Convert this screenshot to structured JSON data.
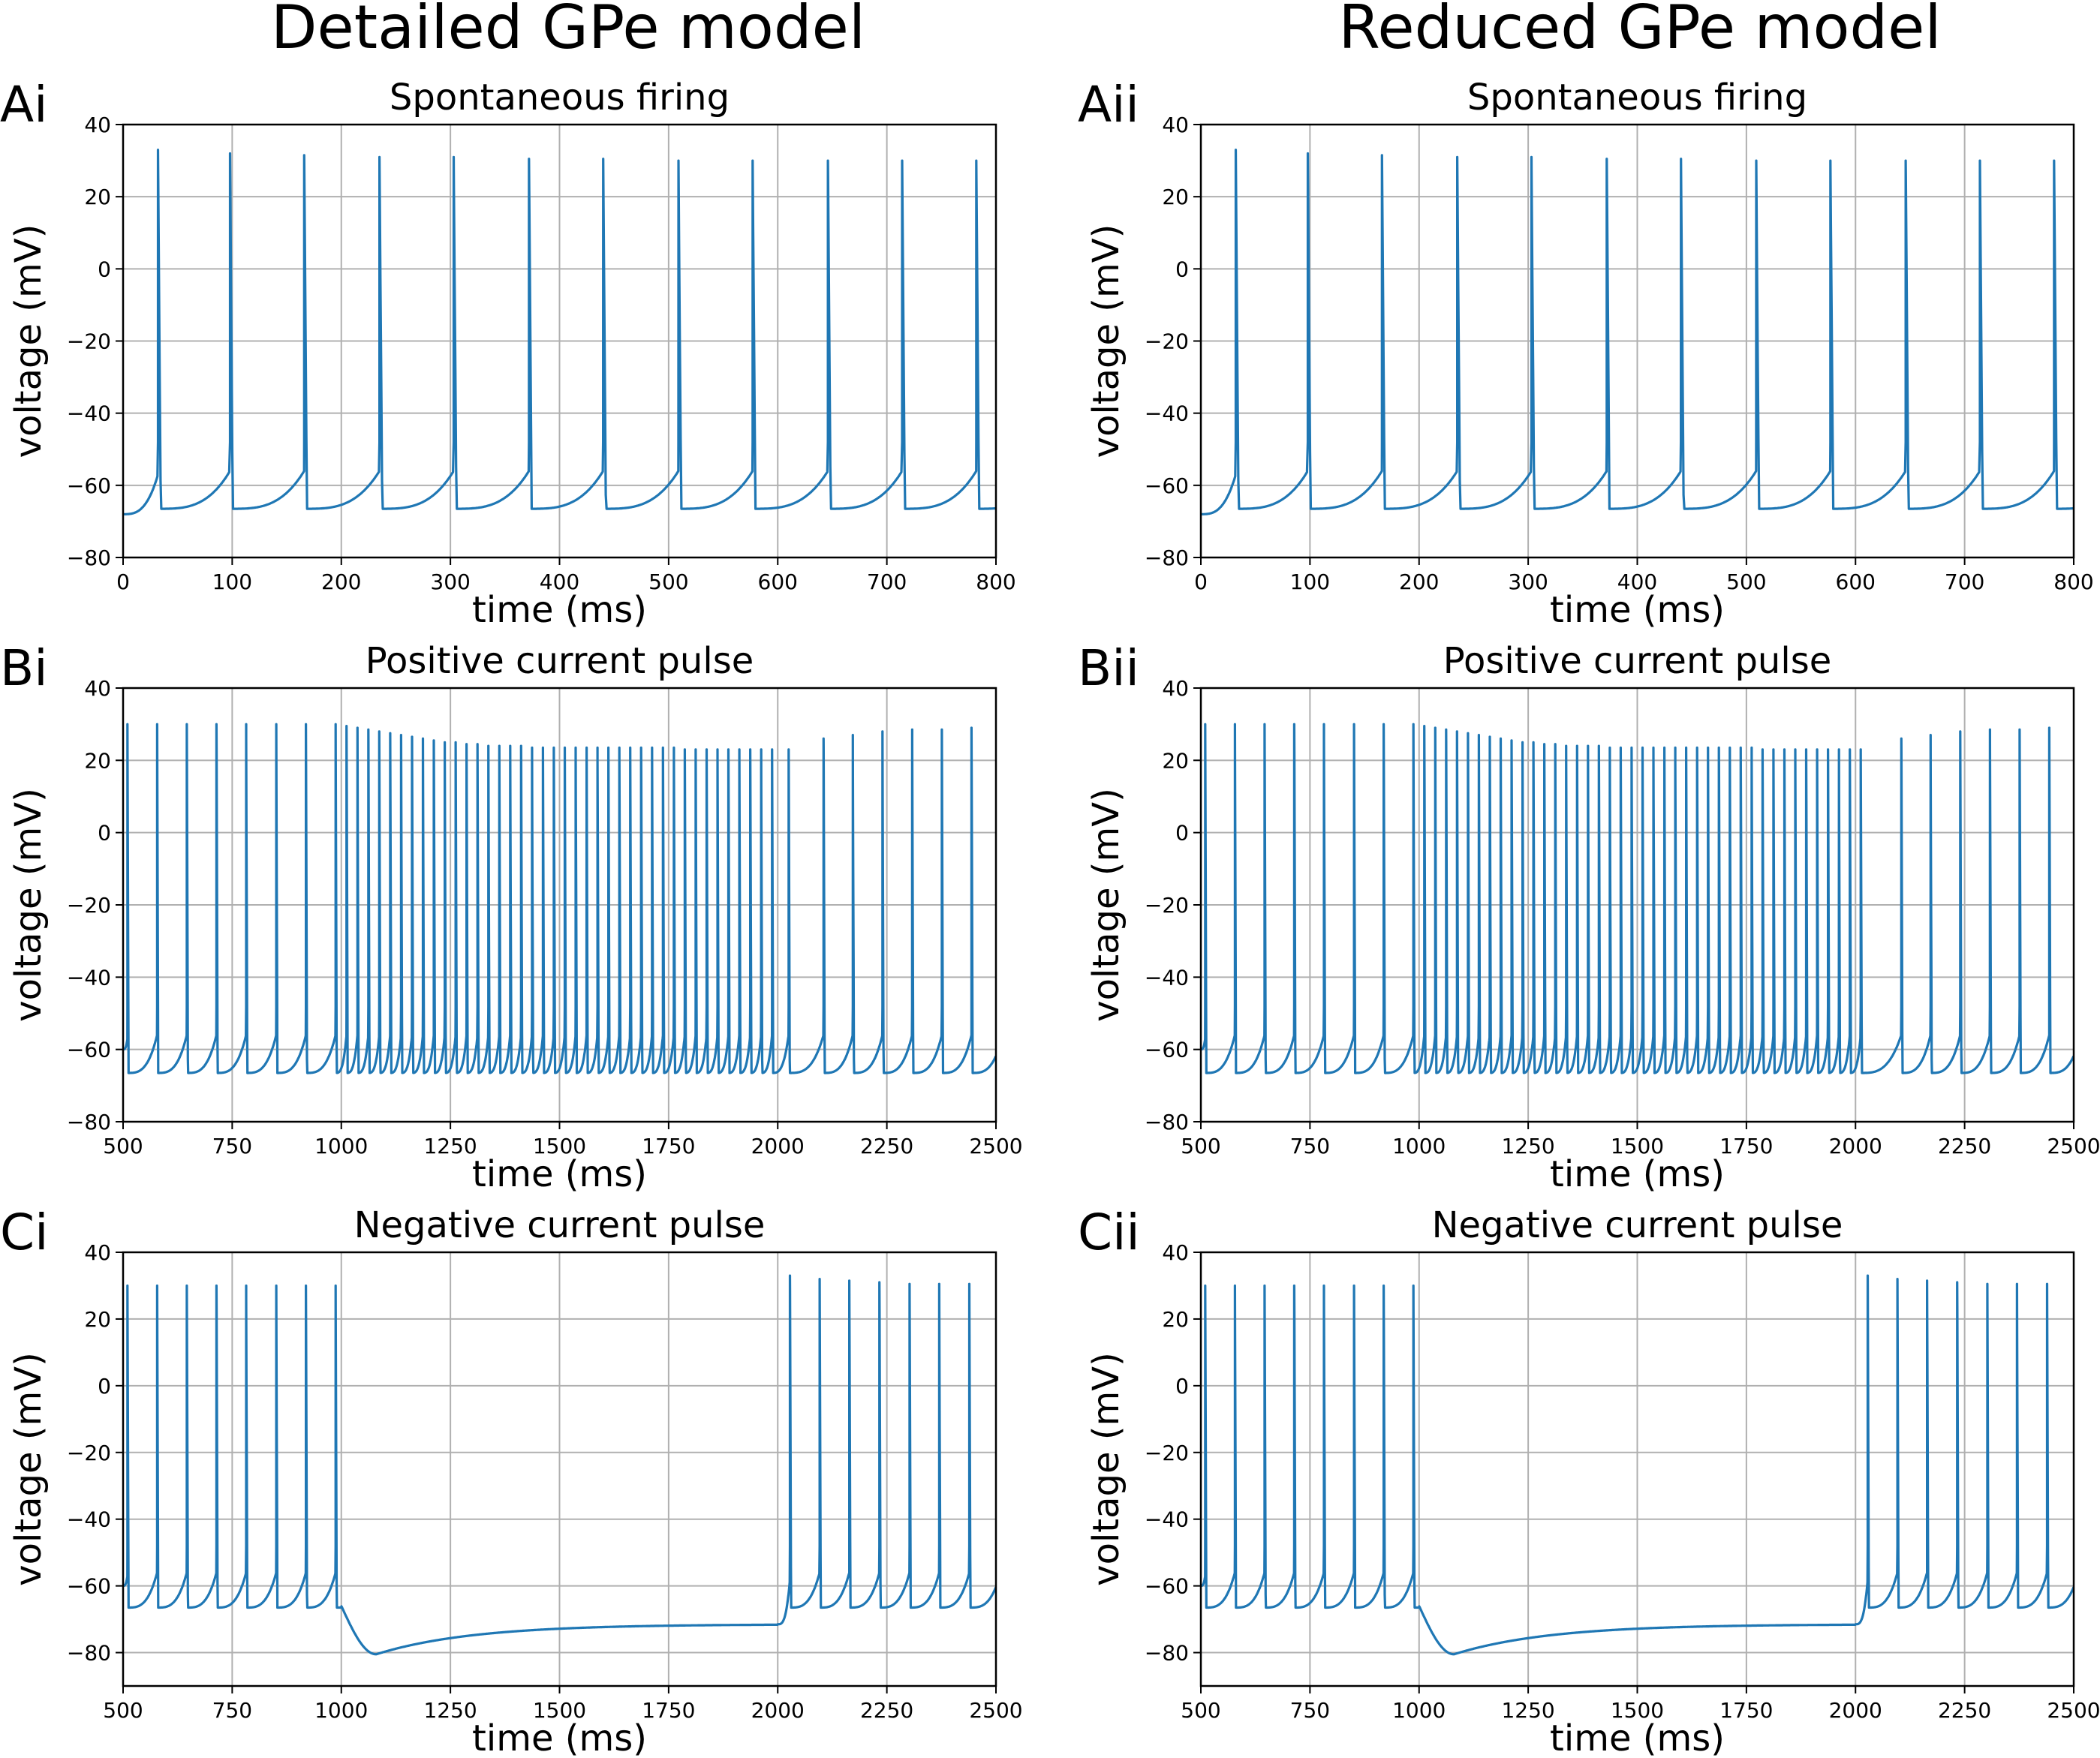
{
  "figure": {
    "column_titles": [
      "Detailed GPe model",
      "Reduced GPe model"
    ],
    "trace_color": "#1f77b4"
  },
  "chart_data": [
    {
      "type": "line",
      "panel_label": "Ai",
      "column": 0,
      "row": 0,
      "title": "Spontaneous firing",
      "xlabel": "time (ms)",
      "ylabel": "voltage (mV)",
      "xlim": [
        0,
        800
      ],
      "ylim": [
        -80,
        40
      ],
      "xticks": [
        0,
        100,
        200,
        300,
        400,
        500,
        600,
        700,
        800
      ],
      "yticks": [
        -80,
        -60,
        -40,
        -20,
        0,
        20,
        40
      ],
      "grid": true,
      "series": [
        {
          "trace_model": "spike_train",
          "v_start": -68,
          "v_end": -65,
          "spikes": [
            {
              "t": 32,
              "peak": 33
            },
            {
              "t": 98,
              "peak": 32
            },
            {
              "t": 166,
              "peak": 31.5
            },
            {
              "t": 235,
              "peak": 31
            },
            {
              "t": 303,
              "peak": 31
            },
            {
              "t": 372,
              "peak": 30.5
            },
            {
              "t": 440,
              "peak": 30.5
            },
            {
              "t": 509,
              "peak": 30
            },
            {
              "t": 577,
              "peak": 30
            },
            {
              "t": 646,
              "peak": 30
            },
            {
              "t": 714,
              "peak": 30
            },
            {
              "t": 782,
              "peak": 30
            }
          ]
        }
      ]
    },
    {
      "type": "line",
      "panel_label": "Aii",
      "column": 1,
      "row": 0,
      "title": "Spontaneous firing",
      "xlabel": "time (ms)",
      "ylabel": "voltage (mV)",
      "xlim": [
        0,
        800
      ],
      "ylim": [
        -80,
        40
      ],
      "xticks": [
        0,
        100,
        200,
        300,
        400,
        500,
        600,
        700,
        800
      ],
      "yticks": [
        -80,
        -60,
        -40,
        -20,
        0,
        20,
        40
      ],
      "grid": true,
      "series": [
        {
          "trace_model": "spike_train",
          "v_start": -68,
          "v_end": -65,
          "spikes": [
            {
              "t": 32,
              "peak": 33
            },
            {
              "t": 98,
              "peak": 32
            },
            {
              "t": 166,
              "peak": 31.5
            },
            {
              "t": 235,
              "peak": 31
            },
            {
              "t": 303,
              "peak": 31
            },
            {
              "t": 372,
              "peak": 30.5
            },
            {
              "t": 440,
              "peak": 30.5
            },
            {
              "t": 509,
              "peak": 30
            },
            {
              "t": 577,
              "peak": 30
            },
            {
              "t": 646,
              "peak": 30
            },
            {
              "t": 714,
              "peak": 30
            },
            {
              "t": 782,
              "peak": 30
            }
          ]
        }
      ]
    },
    {
      "type": "line",
      "panel_label": "Bi",
      "column": 0,
      "row": 1,
      "title": "Positive current pulse",
      "xlabel": "time (ms)",
      "ylabel": "voltage (mV)",
      "xlim": [
        500,
        2500
      ],
      "ylim": [
        -80,
        40
      ],
      "xticks": [
        500,
        750,
        1000,
        1250,
        1500,
        1750,
        2000,
        2250,
        2500
      ],
      "yticks": [
        -80,
        -60,
        -40,
        -20,
        0,
        20,
        40
      ],
      "grid": true,
      "series": [
        {
          "trace_model": "spike_train",
          "v_start": -60,
          "v_end": -62,
          "spikes": [
            {
              "t": 510,
              "peak": 30
            },
            {
              "t": 578,
              "peak": 30
            },
            {
              "t": 646,
              "peak": 30
            },
            {
              "t": 714,
              "peak": 30
            },
            {
              "t": 782,
              "peak": 30
            },
            {
              "t": 851,
              "peak": 30
            },
            {
              "t": 919,
              "peak": 30
            },
            {
              "t": 987,
              "peak": 30
            },
            {
              "t": 1012,
              "peak": 29.5
            },
            {
              "t": 1037,
              "peak": 29
            },
            {
              "t": 1062,
              "peak": 28.5
            },
            {
              "t": 1087,
              "peak": 28
            },
            {
              "t": 1112,
              "peak": 27.5
            },
            {
              "t": 1137,
              "peak": 27
            },
            {
              "t": 1162,
              "peak": 26.5
            },
            {
              "t": 1187,
              "peak": 26
            },
            {
              "t": 1212,
              "peak": 25.5
            },
            {
              "t": 1237,
              "peak": 25
            },
            {
              "t": 1262,
              "peak": 25
            },
            {
              "t": 1287,
              "peak": 24.5
            },
            {
              "t": 1312,
              "peak": 24.5
            },
            {
              "t": 1337,
              "peak": 24
            },
            {
              "t": 1362,
              "peak": 24
            },
            {
              "t": 1387,
              "peak": 24
            },
            {
              "t": 1412,
              "peak": 24
            },
            {
              "t": 1437,
              "peak": 23.5
            },
            {
              "t": 1462,
              "peak": 23.5
            },
            {
              "t": 1487,
              "peak": 23.5
            },
            {
              "t": 1512,
              "peak": 23.5
            },
            {
              "t": 1537,
              "peak": 23.5
            },
            {
              "t": 1562,
              "peak": 23.5
            },
            {
              "t": 1587,
              "peak": 23.5
            },
            {
              "t": 1612,
              "peak": 23.5
            },
            {
              "t": 1637,
              "peak": 23.5
            },
            {
              "t": 1662,
              "peak": 23.5
            },
            {
              "t": 1687,
              "peak": 23.5
            },
            {
              "t": 1712,
              "peak": 23.5
            },
            {
              "t": 1737,
              "peak": 23.5
            },
            {
              "t": 1762,
              "peak": 23.5
            },
            {
              "t": 1787,
              "peak": 23
            },
            {
              "t": 1812,
              "peak": 23
            },
            {
              "t": 1837,
              "peak": 23
            },
            {
              "t": 1862,
              "peak": 23
            },
            {
              "t": 1887,
              "peak": 23
            },
            {
              "t": 1912,
              "peak": 23
            },
            {
              "t": 1937,
              "peak": 23
            },
            {
              "t": 1962,
              "peak": 23
            },
            {
              "t": 1987,
              "peak": 23
            },
            {
              "t": 2025,
              "peak": 23
            },
            {
              "t": 2105,
              "peak": 26
            },
            {
              "t": 2172,
              "peak": 27
            },
            {
              "t": 2240,
              "peak": 28
            },
            {
              "t": 2308,
              "peak": 28.5
            },
            {
              "t": 2376,
              "peak": 28.5
            },
            {
              "t": 2444,
              "peak": 29
            }
          ]
        }
      ]
    },
    {
      "type": "line",
      "panel_label": "Bii",
      "column": 1,
      "row": 1,
      "title": "Positive current pulse",
      "xlabel": "time (ms)",
      "ylabel": "voltage (mV)",
      "xlim": [
        500,
        2500
      ],
      "ylim": [
        -80,
        40
      ],
      "xticks": [
        500,
        750,
        1000,
        1250,
        1500,
        1750,
        2000,
        2250,
        2500
      ],
      "yticks": [
        -80,
        -60,
        -40,
        -20,
        0,
        20,
        40
      ],
      "grid": true,
      "series": [
        {
          "trace_model": "spike_train",
          "v_start": -60,
          "v_end": -62,
          "spikes": [
            {
              "t": 510,
              "peak": 30
            },
            {
              "t": 578,
              "peak": 30
            },
            {
              "t": 646,
              "peak": 30
            },
            {
              "t": 714,
              "peak": 30
            },
            {
              "t": 782,
              "peak": 30
            },
            {
              "t": 851,
              "peak": 30
            },
            {
              "t": 919,
              "peak": 30
            },
            {
              "t": 987,
              "peak": 30
            },
            {
              "t": 1012,
              "peak": 29.5
            },
            {
              "t": 1037,
              "peak": 29
            },
            {
              "t": 1062,
              "peak": 28.5
            },
            {
              "t": 1087,
              "peak": 28
            },
            {
              "t": 1112,
              "peak": 27.5
            },
            {
              "t": 1137,
              "peak": 27
            },
            {
              "t": 1162,
              "peak": 26.5
            },
            {
              "t": 1187,
              "peak": 26
            },
            {
              "t": 1212,
              "peak": 25.5
            },
            {
              "t": 1237,
              "peak": 25
            },
            {
              "t": 1262,
              "peak": 25
            },
            {
              "t": 1287,
              "peak": 24.5
            },
            {
              "t": 1312,
              "peak": 24.5
            },
            {
              "t": 1337,
              "peak": 24
            },
            {
              "t": 1362,
              "peak": 24
            },
            {
              "t": 1387,
              "peak": 24
            },
            {
              "t": 1412,
              "peak": 24
            },
            {
              "t": 1437,
              "peak": 23.5
            },
            {
              "t": 1462,
              "peak": 23.5
            },
            {
              "t": 1487,
              "peak": 23.5
            },
            {
              "t": 1512,
              "peak": 23.5
            },
            {
              "t": 1537,
              "peak": 23.5
            },
            {
              "t": 1562,
              "peak": 23.5
            },
            {
              "t": 1587,
              "peak": 23.5
            },
            {
              "t": 1612,
              "peak": 23.5
            },
            {
              "t": 1637,
              "peak": 23.5
            },
            {
              "t": 1662,
              "peak": 23.5
            },
            {
              "t": 1687,
              "peak": 23.5
            },
            {
              "t": 1712,
              "peak": 23.5
            },
            {
              "t": 1737,
              "peak": 23.5
            },
            {
              "t": 1762,
              "peak": 23.5
            },
            {
              "t": 1787,
              "peak": 23
            },
            {
              "t": 1812,
              "peak": 23
            },
            {
              "t": 1837,
              "peak": 23
            },
            {
              "t": 1862,
              "peak": 23
            },
            {
              "t": 1887,
              "peak": 23
            },
            {
              "t": 1912,
              "peak": 23
            },
            {
              "t": 1937,
              "peak": 23
            },
            {
              "t": 1962,
              "peak": 23
            },
            {
              "t": 1987,
              "peak": 23
            },
            {
              "t": 2012,
              "peak": 23
            },
            {
              "t": 2105,
              "peak": 26
            },
            {
              "t": 2172,
              "peak": 27
            },
            {
              "t": 2240,
              "peak": 28
            },
            {
              "t": 2308,
              "peak": 28.5
            },
            {
              "t": 2376,
              "peak": 28.5
            },
            {
              "t": 2444,
              "peak": 29
            }
          ]
        }
      ]
    },
    {
      "type": "line",
      "panel_label": "Ci",
      "column": 0,
      "row": 2,
      "title": "Negative current pulse",
      "xlabel": "time (ms)",
      "ylabel": "voltage (mV)",
      "xlim": [
        500,
        2500
      ],
      "ylim": [
        -90,
        40
      ],
      "xticks": [
        500,
        750,
        1000,
        1250,
        1500,
        1750,
        2000,
        2250,
        2500
      ],
      "yticks": [
        -80,
        -60,
        -40,
        -20,
        0,
        20,
        40
      ],
      "grid": true,
      "series": [
        {
          "trace_model": "spike_train_with_hyperpolarization",
          "v_start": -60,
          "v_end": -61,
          "hyperpolarization": {
            "start": 1000,
            "end": 2000,
            "onset_v": -66,
            "trough_t": 1080,
            "trough_v": -80.5,
            "end_v": -71.5
          },
          "spikes": [
            {
              "t": 510,
              "peak": 30
            },
            {
              "t": 578,
              "peak": 30
            },
            {
              "t": 646,
              "peak": 30
            },
            {
              "t": 714,
              "peak": 30
            },
            {
              "t": 782,
              "peak": 30
            },
            {
              "t": 851,
              "peak": 30
            },
            {
              "t": 919,
              "peak": 30
            },
            {
              "t": 987,
              "peak": 30
            },
            {
              "t": 2028,
              "peak": 33
            },
            {
              "t": 2096,
              "peak": 32
            },
            {
              "t": 2164,
              "peak": 31.5
            },
            {
              "t": 2233,
              "peak": 31
            },
            {
              "t": 2302,
              "peak": 30.5
            },
            {
              "t": 2370,
              "peak": 30.5
            },
            {
              "t": 2439,
              "peak": 30.5
            }
          ]
        }
      ]
    },
    {
      "type": "line",
      "panel_label": "Cii",
      "column": 1,
      "row": 2,
      "title": "Negative current pulse",
      "xlabel": "time (ms)",
      "ylabel": "voltage (mV)",
      "xlim": [
        500,
        2500
      ],
      "ylim": [
        -90,
        40
      ],
      "xticks": [
        500,
        750,
        1000,
        1250,
        1500,
        1750,
        2000,
        2250,
        2500
      ],
      "yticks": [
        -80,
        -60,
        -40,
        -20,
        0,
        20,
        40
      ],
      "grid": true,
      "series": [
        {
          "trace_model": "spike_train_with_hyperpolarization",
          "v_start": -60,
          "v_end": -61,
          "hyperpolarization": {
            "start": 1000,
            "end": 2000,
            "onset_v": -66,
            "trough_t": 1080,
            "trough_v": -80.5,
            "end_v": -71.5
          },
          "spikes": [
            {
              "t": 510,
              "peak": 30
            },
            {
              "t": 578,
              "peak": 30
            },
            {
              "t": 646,
              "peak": 30
            },
            {
              "t": 714,
              "peak": 30
            },
            {
              "t": 782,
              "peak": 30
            },
            {
              "t": 851,
              "peak": 30
            },
            {
              "t": 919,
              "peak": 30
            },
            {
              "t": 987,
              "peak": 30
            },
            {
              "t": 2028,
              "peak": 33
            },
            {
              "t": 2096,
              "peak": 32
            },
            {
              "t": 2164,
              "peak": 31.5
            },
            {
              "t": 2233,
              "peak": 31
            },
            {
              "t": 2302,
              "peak": 30.5
            },
            {
              "t": 2370,
              "peak": 30.5
            },
            {
              "t": 2439,
              "peak": 30.5
            }
          ]
        }
      ]
    }
  ]
}
